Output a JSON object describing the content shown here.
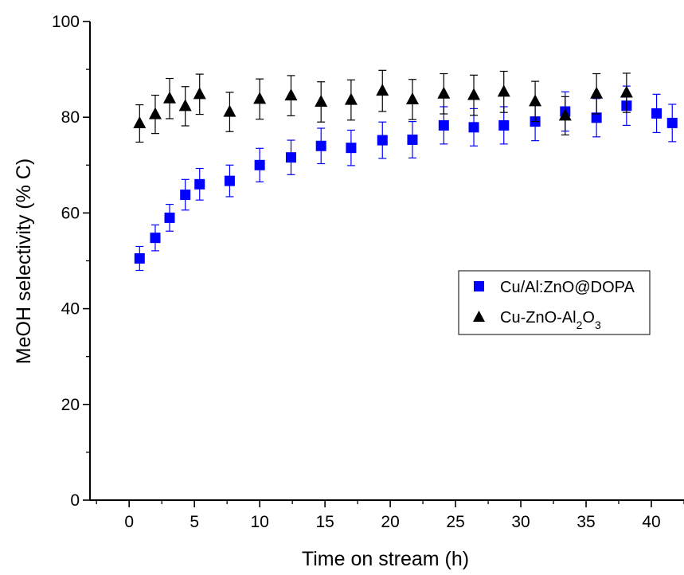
{
  "chart_data": {
    "type": "scatter",
    "xlabel": "Time on stream (h)",
    "ylabel": "MeOH selectivity (% C)",
    "xlim": [
      -3,
      42.5
    ],
    "ylim": [
      0,
      100
    ],
    "xticks": [
      0,
      5,
      10,
      15,
      20,
      25,
      30,
      35,
      40
    ],
    "yticks": [
      0,
      20,
      40,
      60,
      80,
      100
    ],
    "x_minor_step": 2.5,
    "y_minor_step": 10,
    "grid": false,
    "legend_position": "middle-right",
    "series": [
      {
        "name": "Cu/Al:ZnO@DOPA",
        "marker": "square",
        "color": "#0000FF",
        "points": [
          {
            "x": 0.8,
            "y": 50.5,
            "err": 2.5
          },
          {
            "x": 2.0,
            "y": 54.8,
            "err": 2.7
          },
          {
            "x": 3.1,
            "y": 59.0,
            "err": 2.8
          },
          {
            "x": 4.3,
            "y": 63.8,
            "err": 3.2
          },
          {
            "x": 5.4,
            "y": 66.0,
            "err": 3.3
          },
          {
            "x": 7.7,
            "y": 66.7,
            "err": 3.3
          },
          {
            "x": 10.0,
            "y": 70.0,
            "err": 3.5
          },
          {
            "x": 12.4,
            "y": 71.6,
            "err": 3.6
          },
          {
            "x": 14.7,
            "y": 74.0,
            "err": 3.7
          },
          {
            "x": 17.0,
            "y": 73.6,
            "err": 3.7
          },
          {
            "x": 19.4,
            "y": 75.2,
            "err": 3.8
          },
          {
            "x": 21.7,
            "y": 75.3,
            "err": 3.8
          },
          {
            "x": 24.1,
            "y": 78.3,
            "err": 3.9
          },
          {
            "x": 26.4,
            "y": 77.9,
            "err": 3.9
          },
          {
            "x": 28.7,
            "y": 78.3,
            "err": 3.9
          },
          {
            "x": 31.1,
            "y": 79.1,
            "err": 4.0
          },
          {
            "x": 33.4,
            "y": 81.2,
            "err": 4.1
          },
          {
            "x": 35.8,
            "y": 79.9,
            "err": 4.0
          },
          {
            "x": 38.1,
            "y": 82.4,
            "err": 4.1
          },
          {
            "x": 40.4,
            "y": 80.8,
            "err": 4.0
          },
          {
            "x": 41.6,
            "y": 78.8,
            "err": 3.9
          }
        ]
      },
      {
        "name": "Cu-ZnO-Al",
        "name_sub1": "2",
        "name_mid": "O",
        "name_sub2": "3",
        "marker": "triangle",
        "color": "#000000",
        "points": [
          {
            "x": 0.8,
            "y": 78.7,
            "err": 3.9
          },
          {
            "x": 2.0,
            "y": 80.6,
            "err": 4.0
          },
          {
            "x": 3.1,
            "y": 83.9,
            "err": 4.2
          },
          {
            "x": 4.3,
            "y": 82.3,
            "err": 4.1
          },
          {
            "x": 5.4,
            "y": 84.8,
            "err": 4.2
          },
          {
            "x": 7.7,
            "y": 81.1,
            "err": 4.1
          },
          {
            "x": 10.0,
            "y": 83.8,
            "err": 4.2
          },
          {
            "x": 12.4,
            "y": 84.5,
            "err": 4.2
          },
          {
            "x": 14.7,
            "y": 83.2,
            "err": 4.2
          },
          {
            "x": 17.0,
            "y": 83.6,
            "err": 4.2
          },
          {
            "x": 19.4,
            "y": 85.5,
            "err": 4.3
          },
          {
            "x": 21.7,
            "y": 83.7,
            "err": 4.2
          },
          {
            "x": 24.1,
            "y": 84.9,
            "err": 4.2
          },
          {
            "x": 26.4,
            "y": 84.6,
            "err": 4.2
          },
          {
            "x": 28.7,
            "y": 85.3,
            "err": 4.3
          },
          {
            "x": 31.1,
            "y": 83.3,
            "err": 4.2
          },
          {
            "x": 33.4,
            "y": 80.3,
            "err": 4.0
          },
          {
            "x": 35.8,
            "y": 84.9,
            "err": 4.2
          },
          {
            "x": 38.1,
            "y": 85.1,
            "err": 4.1
          }
        ]
      }
    ]
  }
}
